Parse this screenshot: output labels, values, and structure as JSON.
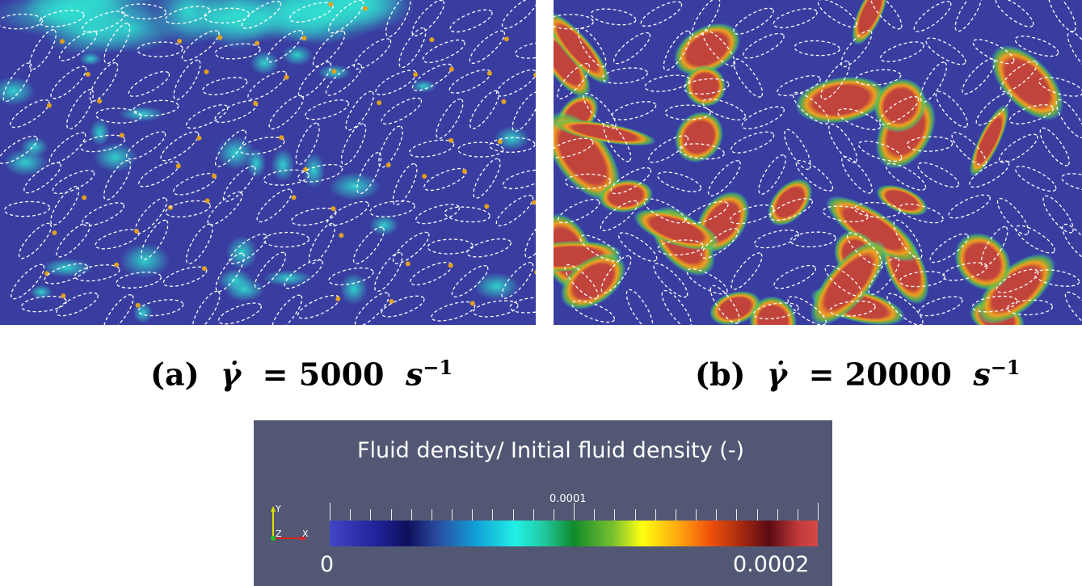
{
  "panel_a": {
    "caption_label": "(a)",
    "caption_symbol": "γ̇",
    "caption_equals": "= 5000",
    "caption_unit": "s",
    "caption_exp": "−1"
  },
  "panel_b": {
    "caption_label": "(b)",
    "caption_symbol": "γ̇",
    "caption_equals": "= 20000",
    "caption_unit": "s",
    "caption_exp": "−1"
  },
  "legend": {
    "title": "Fluid density/ Initial fluid density (-)",
    "min_label": "0",
    "mid_label": "0.0001",
    "max_label": "0.0002",
    "axis_y": "Y",
    "axis_z": "Z",
    "axis_x": "X"
  },
  "colors": {
    "background_field": "#3a3da0",
    "low_density": "#25d8c8",
    "high_density": "#c0443c",
    "legend_bg": "#525873"
  }
}
